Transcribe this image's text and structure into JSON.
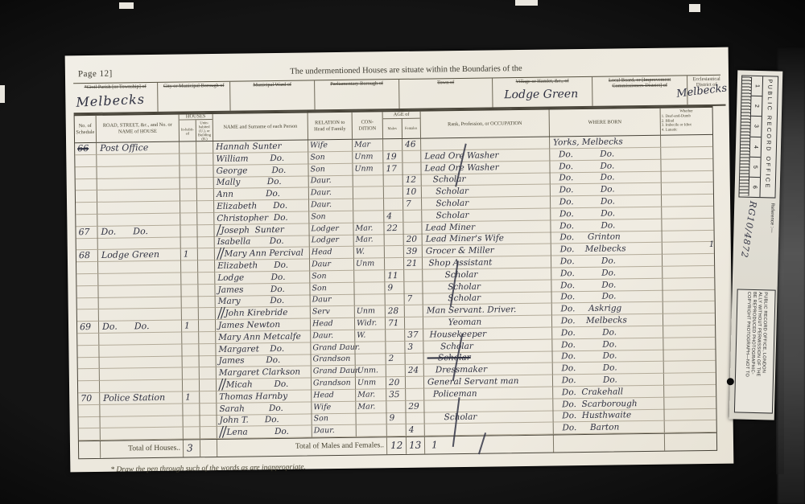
{
  "header": {
    "page_label": "Page 12]",
    "form_title": "The undermentioned Houses are situate within the Boundaries of the",
    "boxes": [
      {
        "label": "*Civil Parish [or Township] of",
        "struck": true,
        "value": "Melbecks"
      },
      {
        "label": "City or Municipal Borough of",
        "struck": true,
        "value": ""
      },
      {
        "label": "Municipal Ward of",
        "struck": true,
        "value": ""
      },
      {
        "label": "Parliamentary Borough of",
        "struck": true,
        "value": ""
      },
      {
        "label": "Town of",
        "struck": true,
        "value": ""
      },
      {
        "label": "Village or Hamlet, &c., of",
        "struck": true,
        "value": "Lodge Green"
      },
      {
        "label": "Local Board, or [Improvement Commissioners District] of",
        "struck": true,
        "value": ""
      },
      {
        "label": "Ecclesiastical District of",
        "struck": false,
        "value": "Melbecks"
      }
    ]
  },
  "table": {
    "columns": {
      "schedule": "No. of Schedule",
      "road": "ROAD, STREET, &c., and No. or NAME of HOUSE",
      "houses_group": "HOUSES",
      "inhabited": "In-habit-ed",
      "uninhabited": "Unin-habited (U.), or Building (B.)",
      "name": "NAME and Surname of each Person",
      "relation": "RELATION to Head of Family",
      "condition": "CON- DITION",
      "age_group": "AGE of",
      "age_male": "Males",
      "age_female": "Females",
      "occupation": "Rank, Profession, or OCCUPATION",
      "born": "WHERE BORN"
    },
    "infirmity_lines": [
      "Whether",
      "1. Deaf-and-Dumb",
      "2. Blind",
      "3. Imbecile or Idiot",
      "4. Lunatic"
    ],
    "rows": [
      {
        "schedule": "66",
        "schedule_struck": true,
        "road": "Post Office",
        "inhab": "",
        "sep": "",
        "name": "Hannah Sunter",
        "relation": "Wife",
        "condition": "Mar",
        "age_m": "",
        "age_f": "46",
        "occupation": "",
        "occ_struck": false,
        "born": "Yorks, Melbecks"
      },
      {
        "schedule": "",
        "schedule_struck": false,
        "road": "",
        "inhab": "",
        "sep": "",
        "name": "William        Do.",
        "relation": "Son",
        "condition": "Unm",
        "age_m": "19",
        "age_f": "",
        "occupation": "Lead Ore Washer",
        "occ_struck": false,
        "born": "  Do.          Do."
      },
      {
        "schedule": "",
        "schedule_struck": false,
        "road": "",
        "inhab": "",
        "sep": "",
        "name": "George         Do.",
        "relation": "Son",
        "condition": "Unm",
        "age_m": "17",
        "age_f": "",
        "occupation": "Lead Ore Washer",
        "occ_struck": false,
        "born": "  Do.          Do."
      },
      {
        "schedule": "",
        "schedule_struck": false,
        "road": "",
        "inhab": "",
        "sep": "",
        "name": "Mally          Do.",
        "relation": "Daur.",
        "condition": "",
        "age_m": "",
        "age_f": "12",
        "occupation": "   Scholar",
        "occ_struck": false,
        "born": "  Do.          Do."
      },
      {
        "schedule": "",
        "schedule_struck": false,
        "road": "",
        "inhab": "",
        "sep": "",
        "name": "Ann            Do.",
        "relation": "Daur.",
        "condition": "",
        "age_m": "",
        "age_f": "10",
        "occupation": "    Scholar",
        "occ_struck": false,
        "born": "  Do.          Do."
      },
      {
        "schedule": "",
        "schedule_struck": false,
        "road": "",
        "inhab": "",
        "sep": "",
        "name": "Elizabeth      Do.",
        "relation": "Daur.",
        "condition": "",
        "age_m": "",
        "age_f": "7",
        "occupation": "    Scholar",
        "occ_struck": false,
        "born": "  Do.          Do."
      },
      {
        "schedule": "",
        "schedule_struck": false,
        "road": "",
        "inhab": "",
        "sep": "",
        "name": "Christopher  Do.",
        "relation": "Son",
        "condition": "",
        "age_m": "4",
        "age_f": "",
        "occupation": "    Scholar",
        "occ_struck": false,
        "born": "  Do.          Do."
      },
      {
        "schedule": "67",
        "schedule_struck": false,
        "road": "Do.      Do.",
        "inhab": "",
        "sep": "\\",
        "name": "Joseph  Sunter",
        "relation": "Lodger",
        "condition": "Mar.",
        "age_m": "22",
        "age_f": "",
        "occupation": "Lead Miner",
        "occ_struck": false,
        "born": "  Do.          Do."
      },
      {
        "schedule": "",
        "schedule_struck": false,
        "road": "",
        "inhab": "",
        "sep": "",
        "name": "Isabella       Do.",
        "relation": "Lodger",
        "condition": "Mar.",
        "age_m": "",
        "age_f": "20",
        "occupation": "Lead Miner's Wife",
        "occ_struck": false,
        "born": "  Do.     Grinton"
      },
      {
        "schedule": "68",
        "schedule_struck": false,
        "road": "Lodge Green",
        "inhab": "1",
        "sep": "\\\\",
        "name": "Mary Ann Percival",
        "relation": "Head",
        "condition": "W.",
        "age_m": "",
        "age_f": "39",
        "occupation": "Grocer & Miller",
        "occ_struck": false,
        "born": "  Do.    Melbecks"
      },
      {
        "schedule": "",
        "schedule_struck": false,
        "road": "",
        "inhab": "",
        "sep": "",
        "name": "Elizabeth      Do.",
        "relation": "Daur",
        "condition": "Unm",
        "age_m": "",
        "age_f": "21",
        "occupation": " Shop Assistant",
        "occ_struck": false,
        "born": "  Do.          Do."
      },
      {
        "schedule": "",
        "schedule_struck": false,
        "road": "",
        "inhab": "",
        "sep": "",
        "name": "Lodge          Do.",
        "relation": "Son",
        "condition": "",
        "age_m": "11",
        "age_f": "",
        "occupation": "       Scholar",
        "occ_struck": false,
        "born": "  Do.          Do."
      },
      {
        "schedule": "",
        "schedule_struck": false,
        "road": "",
        "inhab": "",
        "sep": "",
        "name": "James          Do.",
        "relation": "Son",
        "condition": "",
        "age_m": "9",
        "age_f": "",
        "occupation": "        Scholar",
        "occ_struck": false,
        "born": "  Do.          Do."
      },
      {
        "schedule": "",
        "schedule_struck": false,
        "road": "",
        "inhab": "",
        "sep": "",
        "name": "Mary           Do.",
        "relation": "Daur",
        "condition": "",
        "age_m": "",
        "age_f": "7",
        "occupation": "        Scholar",
        "occ_struck": false,
        "born": "  Do.          Do."
      },
      {
        "schedule": "",
        "schedule_struck": false,
        "road": "",
        "inhab": "",
        "sep": "\\\\",
        "name": "John Kirebride",
        "relation": "Serv",
        "condition": "Unm",
        "age_m": "28",
        "age_f": "",
        "occupation": "Man Servant. Driver.",
        "occ_struck": false,
        "born": "  Do.     Askrigg"
      },
      {
        "schedule": "69",
        "schedule_struck": false,
        "road": "Do.      Do.",
        "inhab": "1",
        "sep": "",
        "name": "James Newton",
        "relation": "Head",
        "condition": "Widr.",
        "age_m": "71",
        "age_f": "",
        "occupation": "        Yeoman",
        "occ_struck": false,
        "born": "  Do.    Melbecks"
      },
      {
        "schedule": "",
        "schedule_struck": false,
        "road": "",
        "inhab": "",
        "sep": "",
        "name": "Mary Ann Metcalfe",
        "relation": "Daur.",
        "condition": "W.",
        "age_m": "",
        "age_f": "37",
        "occupation": " Housekeeper",
        "occ_struck": false,
        "born": "  Do.          Do."
      },
      {
        "schedule": "",
        "schedule_struck": false,
        "road": "",
        "inhab": "",
        "sep": "",
        "name": "Margaret    Do.",
        "relation": "Grand Daur.",
        "condition": "",
        "age_m": "",
        "age_f": "3",
        "occupation": "     Scholar",
        "occ_struck": false,
        "born": "  Do.          Do."
      },
      {
        "schedule": "",
        "schedule_struck": false,
        "road": "",
        "inhab": "",
        "sep": "",
        "name": "James        Do.",
        "relation": "Grandson",
        "condition": "",
        "age_m": "2",
        "age_f": "",
        "occupation": "    Scholar",
        "occ_struck": true,
        "born": "  Do.          Do."
      },
      {
        "schedule": "",
        "schedule_struck": false,
        "road": "",
        "inhab": "",
        "sep": "",
        "name": "Margaret Clarkson",
        "relation": "Grand Daur",
        "condition": "Unm.",
        "age_m": "",
        "age_f": "24",
        "occupation": "   Dressmaker",
        "occ_struck": false,
        "born": "  Do.          Do."
      },
      {
        "schedule": "",
        "schedule_struck": false,
        "road": "",
        "inhab": "",
        "sep": "\\\\",
        "name": "Micah        Do.",
        "relation": "Grandson",
        "condition": "Unm",
        "age_m": "20",
        "age_f": "",
        "occupation": "General Servant man",
        "occ_struck": false,
        "born": "  Do.          Do."
      },
      {
        "schedule": "70",
        "schedule_struck": false,
        "road": "Police Station",
        "inhab": "1",
        "sep": "",
        "name": "Thomas Harnby",
        "relation": "Head",
        "condition": "Mar.",
        "age_m": "35",
        "age_f": "",
        "occupation": "  Policeman",
        "occ_struck": false,
        "born": "  Do.  Crakehall"
      },
      {
        "schedule": "",
        "schedule_struck": false,
        "road": "",
        "inhab": "",
        "sep": "",
        "name": "Sarah         Do.",
        "relation": "Wife",
        "condition": "Mar.",
        "age_m": "",
        "age_f": "29",
        "occupation": "",
        "occ_struck": false,
        "born": "  Do.  Scarborough"
      },
      {
        "schedule": "",
        "schedule_struck": false,
        "road": "",
        "inhab": "",
        "sep": "",
        "name": "John T.      Do.",
        "relation": "Son",
        "condition": "",
        "age_m": "9",
        "age_f": "",
        "occupation": "      Scholar",
        "occ_struck": false,
        "born": "  Do.  Husthwaite"
      },
      {
        "schedule": "",
        "schedule_struck": false,
        "road": "",
        "inhab": "",
        "sep": "\\\\",
        "name": "Lena          Do.",
        "relation": "Daur.",
        "condition": "",
        "age_m": "",
        "age_f": "4",
        "occupation": "",
        "occ_struck": false,
        "born": "  Do.     Barton"
      }
    ],
    "margin_mark": "1"
  },
  "totals": {
    "houses_label": "Total of Houses..",
    "houses_value": "3",
    "males_females_label": "Total of Males and Females..",
    "males_value": "12",
    "females_value": "13",
    "extra_mark": "1"
  },
  "footnote": "* Draw the pen through such of the words as are inappropriate.",
  "stamp": {
    "office": "PUBLIC RECORD OFFICE",
    "ruler_numbers": [
      "1",
      "2",
      "3",
      "4",
      "5",
      "6"
    ],
    "reference_label": "Reference :—",
    "reference_value": "RG10/4872",
    "copyright_lines": [
      "COPYRIGHT PHOTOGRAPH—NOT TO",
      "BE  REPRODUCED  PHOTOGRAPHIC-",
      "ALLY WITHOUT PERMISSION OF THE",
      "PUBLIC  RECORD  OFFICE,  LONDON"
    ]
  },
  "colors": {
    "paper": "#efece3",
    "ink": "#2e3040",
    "print": "#3b392f",
    "background": "#000000"
  }
}
